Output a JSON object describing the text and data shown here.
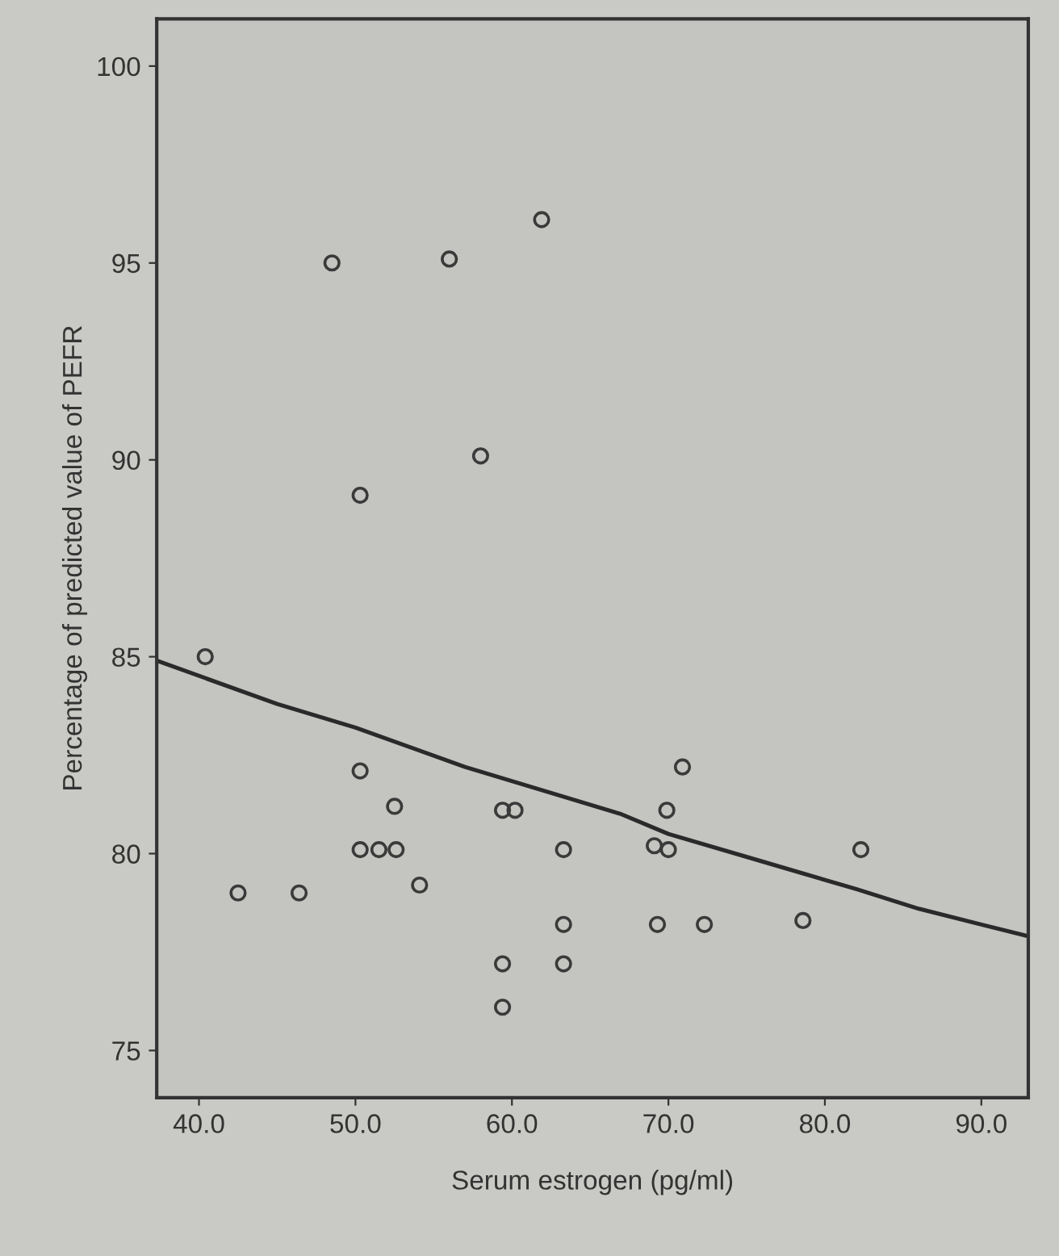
{
  "chart_data": {
    "type": "scatter",
    "xlabel": "Serum estrogen (pg/ml)",
    "ylabel": "Percentage of predicted value of PEFR",
    "xlim": [
      37.3,
      93.0
    ],
    "ylim": [
      73.8,
      101.2
    ],
    "xticks": [
      {
        "value": 40,
        "label": "40.0"
      },
      {
        "value": 50,
        "label": "50.0"
      },
      {
        "value": 60,
        "label": "60.0"
      },
      {
        "value": 70,
        "label": "70.0"
      },
      {
        "value": 80,
        "label": "80.0"
      },
      {
        "value": 90,
        "label": "90.0"
      }
    ],
    "yticks": [
      75,
      80,
      85,
      90,
      95,
      100
    ],
    "grid": false,
    "legend": false,
    "series": [
      {
        "marker": "circle",
        "color": "#3a3a3a",
        "x": [
          40.4,
          42.5,
          46.4,
          48.5,
          50.3,
          50.3,
          50.3,
          51.5,
          52.6,
          52.5,
          54.1,
          56.0,
          58.0,
          61.9,
          59.4,
          60.2,
          59.4,
          59.4,
          63.3,
          63.3,
          63.3,
          69.1,
          70.0,
          69.9,
          70.9,
          69.3,
          72.3,
          78.6,
          82.3
        ],
        "values": [
          85.0,
          79.0,
          79.0,
          95.0,
          89.1,
          82.1,
          80.1,
          80.1,
          80.1,
          81.2,
          79.2,
          95.1,
          90.1,
          96.1,
          81.1,
          81.1,
          77.2,
          76.1,
          80.1,
          78.2,
          77.2,
          80.2,
          80.1,
          81.1,
          82.2,
          78.2,
          78.2,
          78.3,
          80.1
        ]
      },
      {
        "type": "line",
        "marker": "none",
        "line_style": "solid",
        "color": "#2a2a2a",
        "x": [
          37.3,
          45,
          50,
          57,
          62,
          67,
          70,
          76,
          82,
          86,
          90,
          93
        ],
        "values": [
          84.9,
          83.8,
          83.2,
          82.2,
          81.6,
          81.0,
          80.5,
          79.8,
          79.1,
          78.6,
          78.2,
          77.9
        ]
      }
    ]
  }
}
